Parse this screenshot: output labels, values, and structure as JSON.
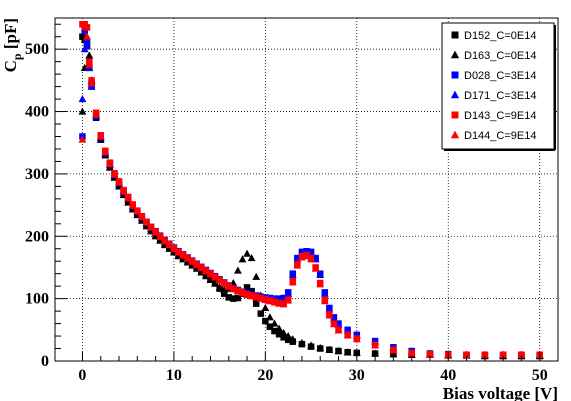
{
  "chart_data": {
    "type": "scatter",
    "title": "",
    "xlabel": "Bias voltage [V]",
    "ylabel_main": "C",
    "ylabel_sub": "p",
    "ylabel_unit": "[pF]",
    "xlim": [
      -3,
      52
    ],
    "ylim": [
      0,
      550
    ],
    "xticks": [
      0,
      10,
      20,
      30,
      40,
      50
    ],
    "yticks": [
      0,
      100,
      200,
      300,
      400,
      500
    ],
    "grid": true,
    "legend_position": "top-right",
    "series": [
      {
        "name": "D152_C=0E14",
        "color": "#000000",
        "marker": "square",
        "x": [
          0,
          0.25,
          0.5,
          0.75,
          1,
          1.5,
          2,
          2.5,
          3,
          3.5,
          4,
          4.5,
          5,
          5.5,
          6,
          6.5,
          7,
          7.5,
          8,
          8.5,
          9,
          9.5,
          10,
          10.5,
          11,
          11.5,
          12,
          12.5,
          13,
          13.5,
          14,
          14.5,
          15,
          15.5,
          16,
          16.5,
          17,
          17.5,
          18,
          18.5,
          19,
          19.5,
          20,
          20.5,
          21,
          21.5,
          22,
          22.5,
          23,
          24,
          25,
          26,
          27,
          28,
          29,
          30,
          32,
          34,
          36,
          38,
          40,
          42,
          44,
          46,
          48,
          50
        ],
        "y": [
          520,
          515,
          505,
          470,
          440,
          390,
          355,
          330,
          312,
          296,
          282,
          268,
          257,
          245,
          236,
          227,
          218,
          210,
          202,
          195,
          188,
          182,
          176,
          170,
          165,
          160,
          155,
          150,
          144,
          138,
          132,
          125,
          116,
          108,
          102,
          100,
          101,
          108,
          118,
          112,
          92,
          76,
          64,
          55,
          48,
          43,
          38,
          34,
          31,
          27,
          23,
          20,
          18,
          16,
          14,
          13,
          12,
          11,
          10,
          10,
          9,
          9,
          8,
          8,
          8,
          8
        ]
      },
      {
        "name": "D163_C=0E14",
        "color": "#000000",
        "marker": "triangle",
        "x": [
          0,
          0.25,
          0.5,
          0.75,
          1,
          1.5,
          2,
          2.5,
          3,
          3.5,
          4,
          4.5,
          5,
          5.5,
          6,
          6.5,
          7,
          7.5,
          8,
          8.5,
          9,
          9.5,
          10,
          10.5,
          11,
          11.5,
          12,
          12.5,
          13,
          13.5,
          14,
          14.5,
          15,
          15.5,
          16,
          16.5,
          17,
          17.5,
          18,
          18.5,
          19,
          19.5,
          20,
          20.5,
          21,
          21.5,
          22,
          22.5,
          23,
          24,
          25,
          26,
          27,
          28,
          29,
          30,
          32,
          34,
          36,
          38,
          40,
          42,
          44,
          46,
          48,
          50
        ],
        "y": [
          400,
          470,
          520,
          490,
          450,
          395,
          355,
          330,
          310,
          294,
          280,
          266,
          254,
          243,
          234,
          225,
          216,
          208,
          200,
          193,
          186,
          180,
          174,
          168,
          163,
          158,
          153,
          148,
          142,
          136,
          130,
          124,
          118,
          114,
          116,
          125,
          145,
          163,
          172,
          165,
          135,
          105,
          85,
          70,
          60,
          52,
          45,
          40,
          35,
          29,
          25,
          21,
          18,
          16,
          14,
          13,
          12,
          11,
          10,
          10,
          9,
          9,
          8,
          8,
          8,
          8
        ]
      },
      {
        "name": "D028_C=3E14",
        "color": "#0000ff",
        "marker": "square",
        "x": [
          0,
          0.25,
          0.5,
          0.75,
          1,
          1.5,
          2,
          2.5,
          3,
          3.5,
          4,
          4.5,
          5,
          5.5,
          6,
          6.5,
          7,
          7.5,
          8,
          8.5,
          9,
          9.5,
          10,
          10.5,
          11,
          11.5,
          12,
          12.5,
          13,
          13.5,
          14,
          14.5,
          15,
          15.5,
          16,
          16.5,
          17,
          17.5,
          18,
          18.5,
          19,
          19.5,
          20,
          20.5,
          21,
          21.5,
          22,
          22.5,
          23,
          23.5,
          24,
          24.5,
          25,
          25.5,
          26,
          26.5,
          27,
          27.5,
          28,
          29,
          30,
          32,
          34,
          36,
          38,
          40,
          42,
          44,
          46,
          48,
          50
        ],
        "y": [
          360,
          530,
          510,
          475,
          445,
          395,
          360,
          335,
          317,
          300,
          287,
          273,
          262,
          250,
          241,
          232,
          223,
          215,
          208,
          201,
          194,
          188,
          182,
          176,
          171,
          166,
          161,
          156,
          151,
          146,
          141,
          136,
          131,
          126,
          121,
          117,
          114,
          111,
          109,
          107,
          105,
          103,
          102,
          101,
          100,
          100,
          101,
          110,
          140,
          165,
          175,
          176,
          175,
          165,
          140,
          110,
          85,
          70,
          60,
          50,
          42,
          32,
          22,
          16,
          12,
          11,
          10,
          10,
          10,
          10,
          10
        ]
      },
      {
        "name": "D171_C=3E14",
        "color": "#0000ff",
        "marker": "triangle",
        "x": [
          0,
          0.25,
          0.5,
          0.75,
          1,
          1.5,
          2,
          2.5,
          3,
          3.5,
          4,
          4.5,
          5,
          5.5,
          6,
          6.5,
          7,
          7.5,
          8,
          8.5,
          9,
          9.5,
          10,
          10.5,
          11,
          11.5,
          12,
          12.5,
          13,
          13.5,
          14,
          14.5,
          15,
          15.5,
          16,
          16.5,
          17,
          17.5,
          18,
          18.5,
          19,
          19.5,
          20,
          20.5,
          21,
          21.5,
          22,
          22.5,
          23,
          23.5,
          24,
          24.5,
          25,
          25.5,
          26,
          26.5,
          27,
          27.5,
          28,
          29,
          30,
          32,
          34,
          36,
          38,
          40,
          42,
          44,
          46,
          48,
          50
        ],
        "y": [
          420,
          500,
          505,
          470,
          440,
          392,
          358,
          333,
          315,
          298,
          285,
          271,
          260,
          248,
          239,
          230,
          221,
          213,
          206,
          199,
          192,
          186,
          180,
          174,
          169,
          164,
          159,
          154,
          149,
          144,
          139,
          134,
          129,
          125,
          120,
          116,
          113,
          110,
          108,
          106,
          104,
          102,
          101,
          100,
          99,
          99,
          100,
          108,
          138,
          163,
          174,
          175,
          174,
          163,
          138,
          108,
          83,
          68,
          58,
          49,
          41,
          31,
          21,
          15,
          12,
          11,
          10,
          10,
          10,
          10,
          10
        ]
      },
      {
        "name": "D143_C=9E14",
        "color": "#ff0000",
        "marker": "square",
        "x": [
          0,
          0.25,
          0.5,
          0.75,
          1,
          1.5,
          2,
          2.5,
          3,
          3.5,
          4,
          4.5,
          5,
          5.5,
          6,
          6.5,
          7,
          7.5,
          8,
          8.5,
          9,
          9.5,
          10,
          10.5,
          11,
          11.5,
          12,
          12.5,
          13,
          13.5,
          14,
          14.5,
          15,
          15.5,
          16,
          16.5,
          17,
          17.5,
          18,
          18.5,
          19,
          19.5,
          20,
          20.5,
          21,
          21.5,
          22,
          22.5,
          23,
          23.5,
          24,
          24.5,
          25,
          25.5,
          26,
          26.5,
          27,
          27.5,
          28,
          29,
          30,
          32,
          34,
          36,
          38,
          40,
          42,
          44,
          46,
          48,
          50
        ],
        "y": [
          540,
          540,
          535,
          480,
          450,
          398,
          362,
          337,
          318,
          301,
          288,
          274,
          263,
          251,
          241,
          232,
          223,
          215,
          207,
          200,
          193,
          187,
          181,
          175,
          170,
          165,
          160,
          155,
          150,
          145,
          140,
          135,
          130,
          125,
          120,
          116,
          113,
          110,
          107,
          105,
          103,
          101,
          99,
          97,
          95,
          93,
          92,
          98,
          128,
          155,
          168,
          170,
          165,
          150,
          125,
          98,
          75,
          60,
          50,
          42,
          36,
          26,
          18,
          13,
          11,
          10,
          10,
          10,
          10,
          10,
          10
        ]
      },
      {
        "name": "D144_C=9E14",
        "color": "#ff0000",
        "marker": "triangle",
        "x": [
          0,
          0.25,
          0.5,
          0.75,
          1,
          1.5,
          2,
          2.5,
          3,
          3.5,
          4,
          4.5,
          5,
          5.5,
          6,
          6.5,
          7,
          7.5,
          8,
          8.5,
          9,
          9.5,
          10,
          10.5,
          11,
          11.5,
          12,
          12.5,
          13,
          13.5,
          14,
          14.5,
          15,
          15.5,
          16,
          16.5,
          17,
          17.5,
          18,
          18.5,
          19,
          19.5,
          20,
          20.5,
          21,
          21.5,
          22,
          22.5,
          23,
          23.5,
          24,
          24.5,
          25,
          25.5,
          26,
          26.5,
          27,
          27.5,
          28,
          29,
          30,
          32,
          34,
          36,
          38,
          40,
          42,
          44,
          46,
          48,
          50
        ],
        "y": [
          355,
          535,
          520,
          475,
          445,
          395,
          360,
          335,
          316,
          299,
          286,
          272,
          261,
          249,
          240,
          231,
          222,
          214,
          206,
          199,
          192,
          186,
          180,
          174,
          169,
          164,
          159,
          154,
          149,
          144,
          139,
          134,
          129,
          124,
          119,
          115,
          112,
          109,
          106,
          104,
          102,
          100,
          98,
          96,
          94,
          92,
          91,
          97,
          126,
          153,
          166,
          168,
          163,
          148,
          123,
          96,
          73,
          59,
          49,
          41,
          35,
          25,
          17,
          12,
          10,
          10,
          10,
          10,
          10,
          10,
          10
        ]
      }
    ]
  }
}
